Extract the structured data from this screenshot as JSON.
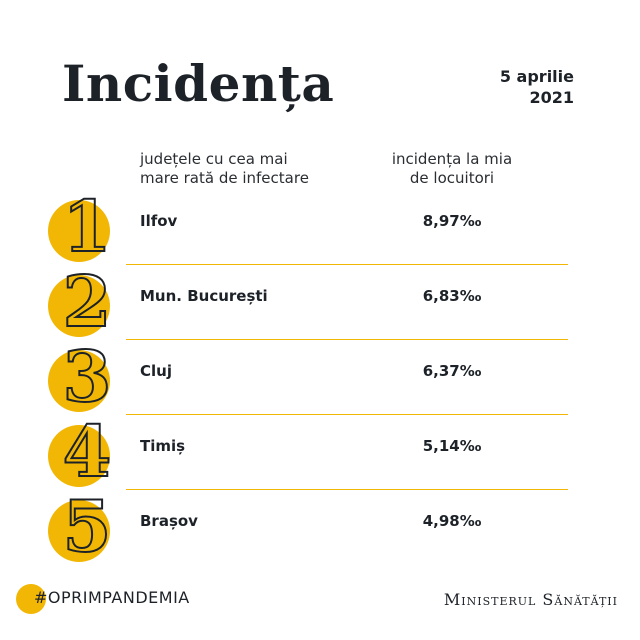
{
  "header": {
    "title": "Incidența",
    "date_line1": "5 aprilie",
    "date_line2": "2021"
  },
  "columns": {
    "left_line1": "județele cu cea mai",
    "left_line2": "mare rată de infectare",
    "right_line1": "incidența la mia",
    "right_line2": "de locuitori"
  },
  "chart_data": {
    "type": "table",
    "columns": [
      "județele cu cea mai mare rată de infectare",
      "incidența la mia de locuitori"
    ],
    "rows": [
      {
        "rank": "1",
        "name": "Ilfov",
        "value": 8.97,
        "value_label": "8,97‰"
      },
      {
        "rank": "2",
        "name": "Mun. București",
        "value": 6.83,
        "value_label": "6,83‰"
      },
      {
        "rank": "3",
        "name": "Cluj",
        "value": 6.37,
        "value_label": "6,37‰"
      },
      {
        "rank": "4",
        "name": "Timiș",
        "value": 5.14,
        "value_label": "5,14‰"
      },
      {
        "rank": "5",
        "name": "Brașov",
        "value": 4.98,
        "value_label": "4,98‰"
      }
    ]
  },
  "footer": {
    "hashtag": "#OPRIMPANDEMIA",
    "ministry": "Ministerul Sănătății"
  },
  "colors": {
    "accent": "#f2b705",
    "text": "#1d2228"
  }
}
